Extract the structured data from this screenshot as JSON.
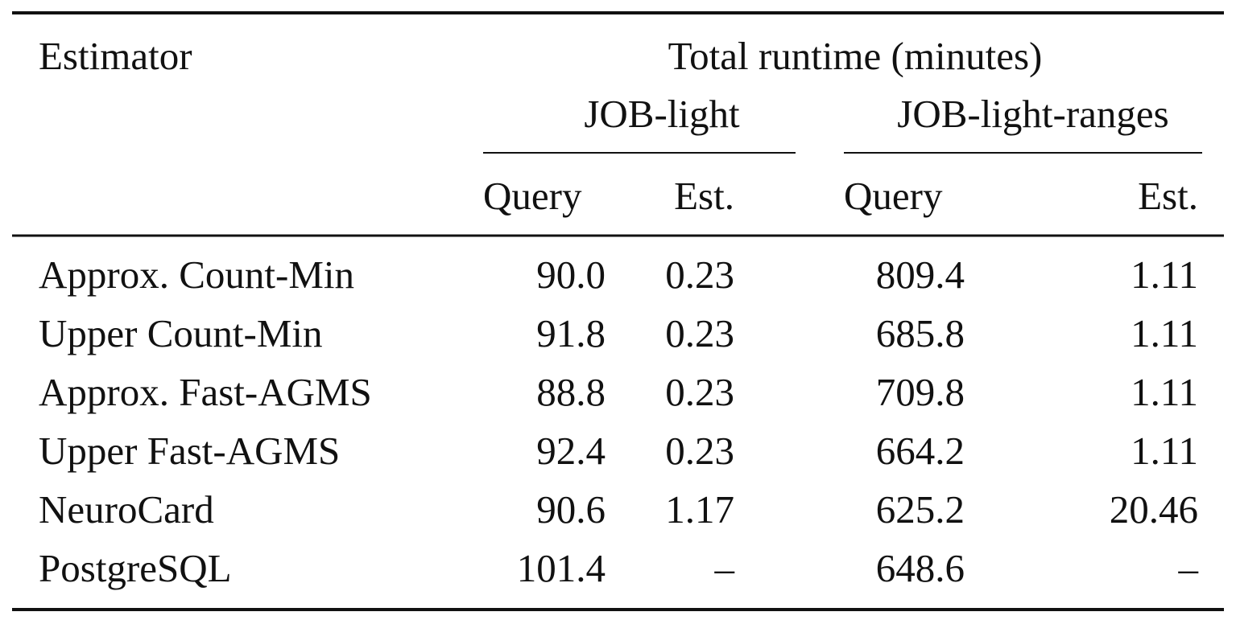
{
  "table": {
    "header": {
      "estimator": "Estimator",
      "group": "Total runtime (minutes)",
      "subgroups": [
        "JOB-light",
        "JOB-light-ranges"
      ],
      "columns": [
        "Query",
        "Est.",
        "Query",
        "Est."
      ]
    },
    "rows": [
      [
        "Approx. Count-Min",
        "90.0",
        "0.23",
        "809.4",
        "1.11"
      ],
      [
        "Upper Count-Min",
        "91.8",
        "0.23",
        "685.8",
        "1.11"
      ],
      [
        "Approx. Fast-AGMS",
        "88.8",
        "0.23",
        "709.8",
        "1.11"
      ],
      [
        "Upper Fast-AGMS",
        "92.4",
        "0.23",
        "664.2",
        "1.11"
      ],
      [
        "NeuroCard",
        "90.6",
        "1.17",
        "625.2",
        "20.46"
      ],
      [
        "PostgreSQL",
        "101.4",
        "–",
        "648.6",
        "–"
      ]
    ]
  }
}
